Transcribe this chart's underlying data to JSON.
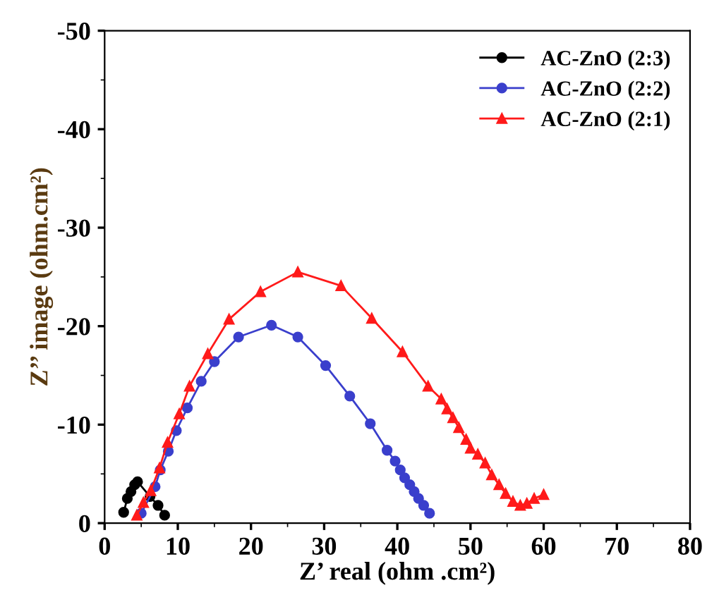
{
  "chart_data": {
    "type": "line",
    "xlabel": "Z’ real (ohm .cm²)",
    "ylabel": "Z’’ image (ohm.cm²)",
    "xlim": [
      0,
      80
    ],
    "xticks": [
      0,
      10,
      20,
      30,
      40,
      50,
      60,
      70,
      80
    ],
    "ylim": [
      0,
      -50
    ],
    "yticks": [
      0,
      -10,
      -20,
      -30,
      -40,
      -50
    ],
    "legend": "top right",
    "grid": false,
    "line_style": "solid",
    "series": [
      {
        "name": "AC-ZnO (2:3)",
        "color": "#000000",
        "marker": "circle",
        "x": [
          2.6,
          3.1,
          3.6,
          4.1,
          4.5,
          6.2,
          7.3,
          8.2
        ],
        "values": [
          -1.1,
          -2.5,
          -3.2,
          -3.9,
          -4.2,
          -2.7,
          -1.8,
          -0.8
        ]
      },
      {
        "name": "AC-ZnO (2:2)",
        "color": "#3a3fcc",
        "marker": "circle",
        "x": [
          5.0,
          6.9,
          7.6,
          8.7,
          9.8,
          11.3,
          13.2,
          15.0,
          18.3,
          22.8,
          26.4,
          30.2,
          33.5,
          36.3,
          38.6,
          39.7,
          40.4,
          41.0,
          41.7,
          42.3,
          42.9,
          43.6,
          44.4
        ],
        "values": [
          -1.0,
          -3.7,
          -5.4,
          -7.3,
          -9.4,
          -11.7,
          -14.4,
          -16.4,
          -18.9,
          -20.1,
          -18.9,
          -16.0,
          -12.9,
          -10.1,
          -7.4,
          -6.3,
          -5.4,
          -4.6,
          -3.9,
          -3.2,
          -2.5,
          -1.8,
          -1.0
        ]
      },
      {
        "name": "AC-ZnO (2:1)",
        "color": "#ff1a1a",
        "marker": "triangle",
        "x": [
          4.4,
          5.3,
          6.3,
          7.5,
          8.6,
          10.2,
          11.6,
          14.1,
          17.0,
          21.3,
          26.4,
          32.3,
          36.5,
          40.7,
          44.2,
          46.0,
          46.8,
          47.6,
          48.4,
          49.4,
          50.0,
          51.0,
          52.0,
          52.9,
          53.9,
          54.8,
          55.8,
          56.8,
          57.7,
          58.7,
          60.0
        ],
        "values": [
          -0.8,
          -2.1,
          -3.3,
          -5.6,
          -8.2,
          -11.1,
          -13.9,
          -17.2,
          -20.7,
          -23.5,
          -25.5,
          -24.1,
          -20.8,
          -17.4,
          -13.9,
          -12.6,
          -11.6,
          -10.7,
          -9.7,
          -8.5,
          -7.6,
          -7.0,
          -6.1,
          -4.9,
          -3.9,
          -3.0,
          -2.2,
          -1.8,
          -2.0,
          -2.5,
          -2.9
        ]
      }
    ]
  }
}
